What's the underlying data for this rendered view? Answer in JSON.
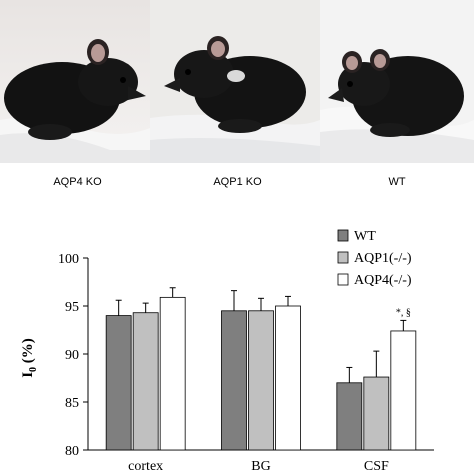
{
  "panels": [
    {
      "label": "AQP4 KO",
      "icon": "black-mouse-photo"
    },
    {
      "label": "AQP1 KO",
      "icon": "black-mouse-photo"
    },
    {
      "label": "WT",
      "icon": "black-mouse-photo"
    }
  ],
  "chart_data": {
    "type": "bar",
    "title": "",
    "xlabel": "",
    "ylabel": "I0 (%)",
    "ylabel_main": "I",
    "ylabel_sub": "0",
    "ylabel_unit": " (%)",
    "categories": [
      "cortex",
      "BG",
      "CSF"
    ],
    "ylim": [
      80,
      100
    ],
    "yticks": [
      80,
      85,
      90,
      95,
      100
    ],
    "grid": false,
    "legend_position": "top-right",
    "series": [
      {
        "name": "WT",
        "color": "#7f7f7f",
        "values": [
          94.0,
          94.5,
          87.0
        ],
        "errors": [
          1.6,
          2.1,
          1.6
        ]
      },
      {
        "name": "AQP1(-/-)",
        "color": "#c0c0c0",
        "values": [
          94.3,
          94.5,
          87.6
        ],
        "errors": [
          1.0,
          1.3,
          2.7
        ]
      },
      {
        "name": "AQP4(-/-)",
        "color": "#ffffff",
        "values": [
          95.9,
          95.0,
          92.4
        ],
        "errors": [
          1.0,
          1.0,
          1.1
        ]
      }
    ],
    "annotations": [
      {
        "category": "CSF",
        "series": "AQP4(-/-)",
        "text": "*, §"
      }
    ]
  }
}
